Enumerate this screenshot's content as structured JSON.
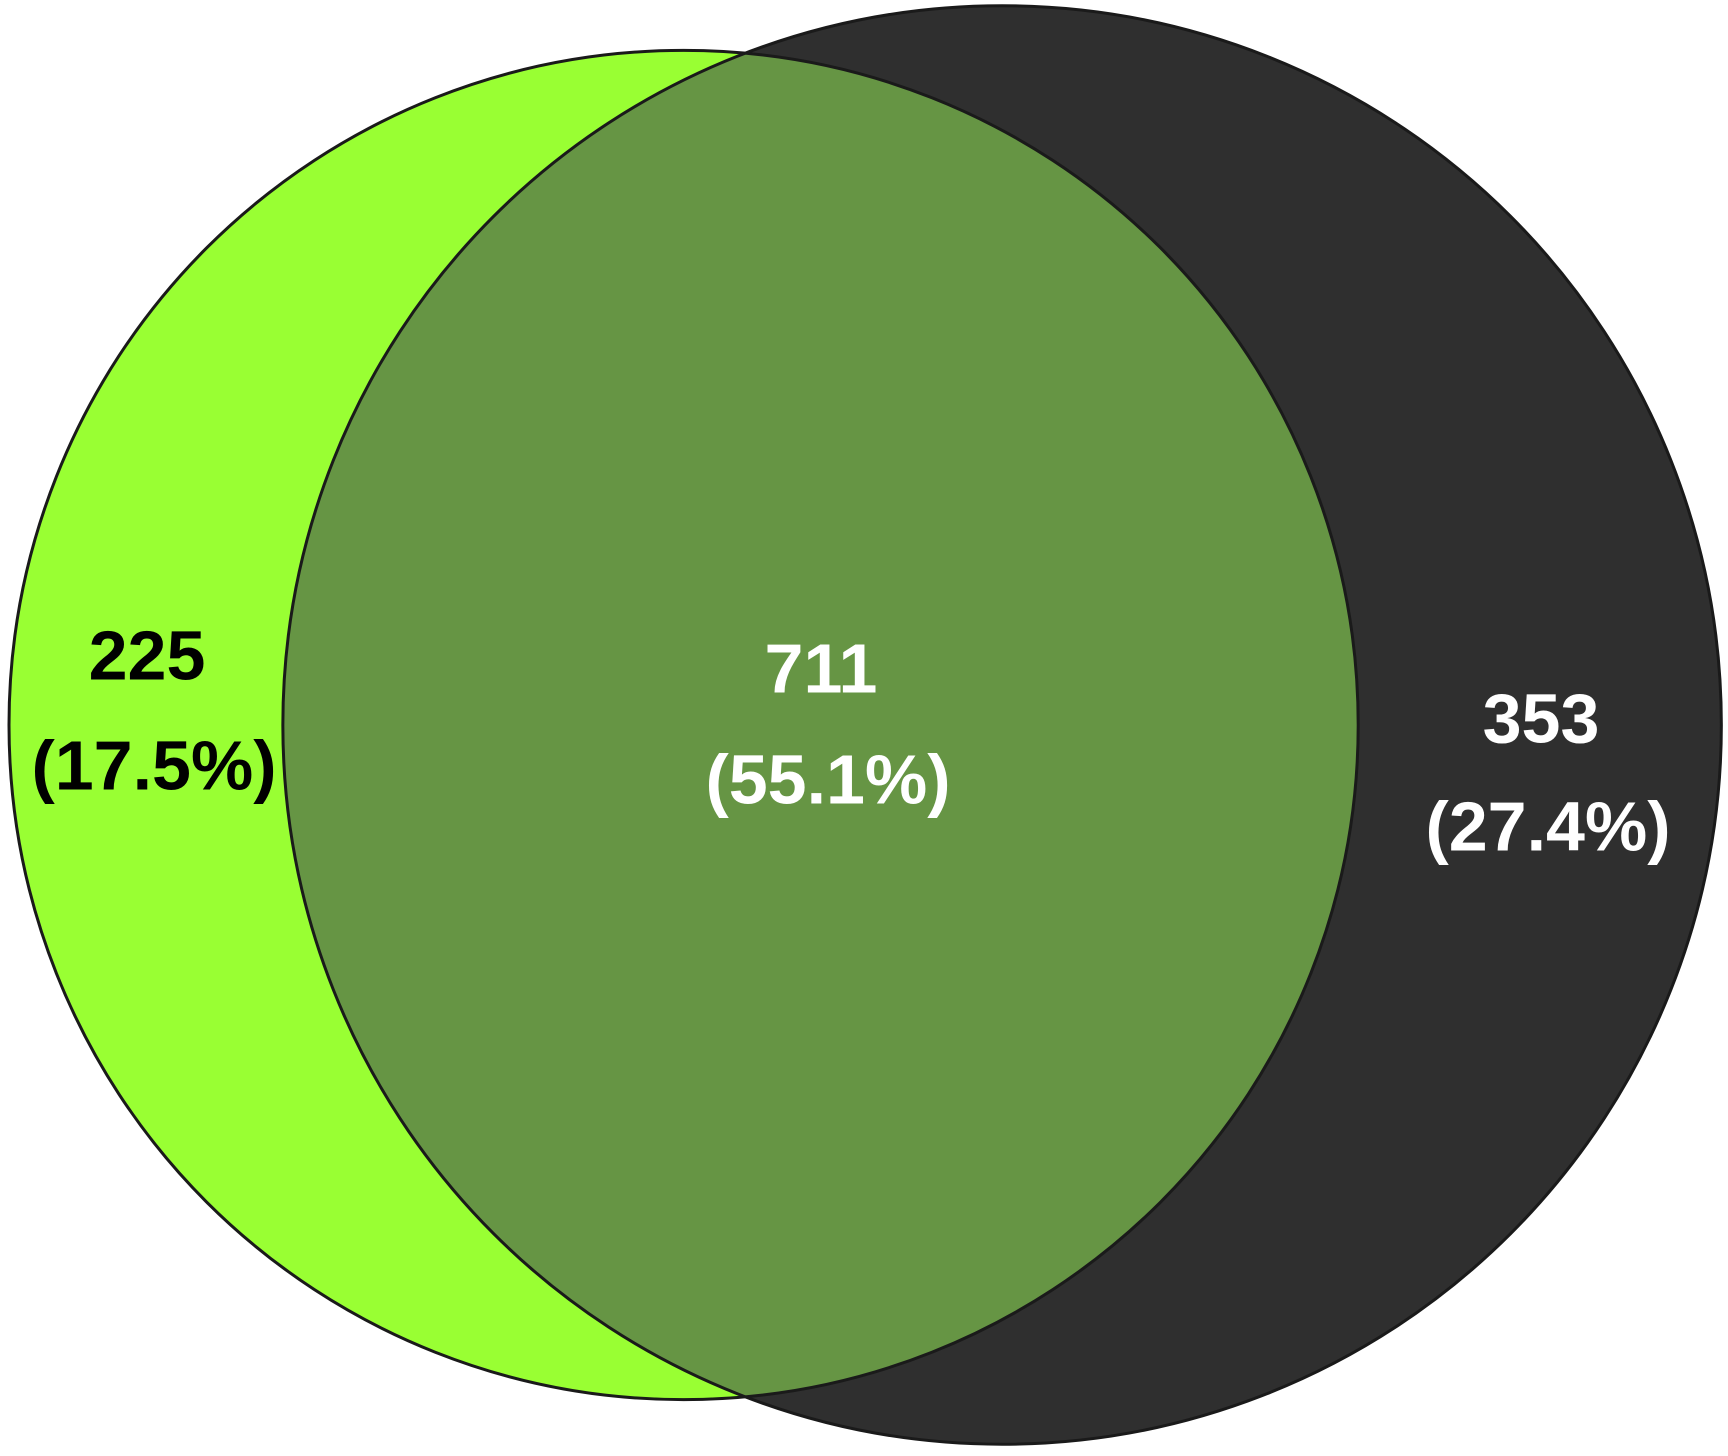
{
  "chart_data": {
    "type": "venn",
    "values": [
      225,
      711,
      353
    ],
    "percents": [
      17.5,
      55.1,
      27.4
    ],
    "percent_labels": [
      "(17.5%)",
      "(55.1%)",
      "(27.4%)"
    ],
    "colors": [
      "#99ff33",
      "#669544",
      "#2f2f2f"
    ]
  }
}
